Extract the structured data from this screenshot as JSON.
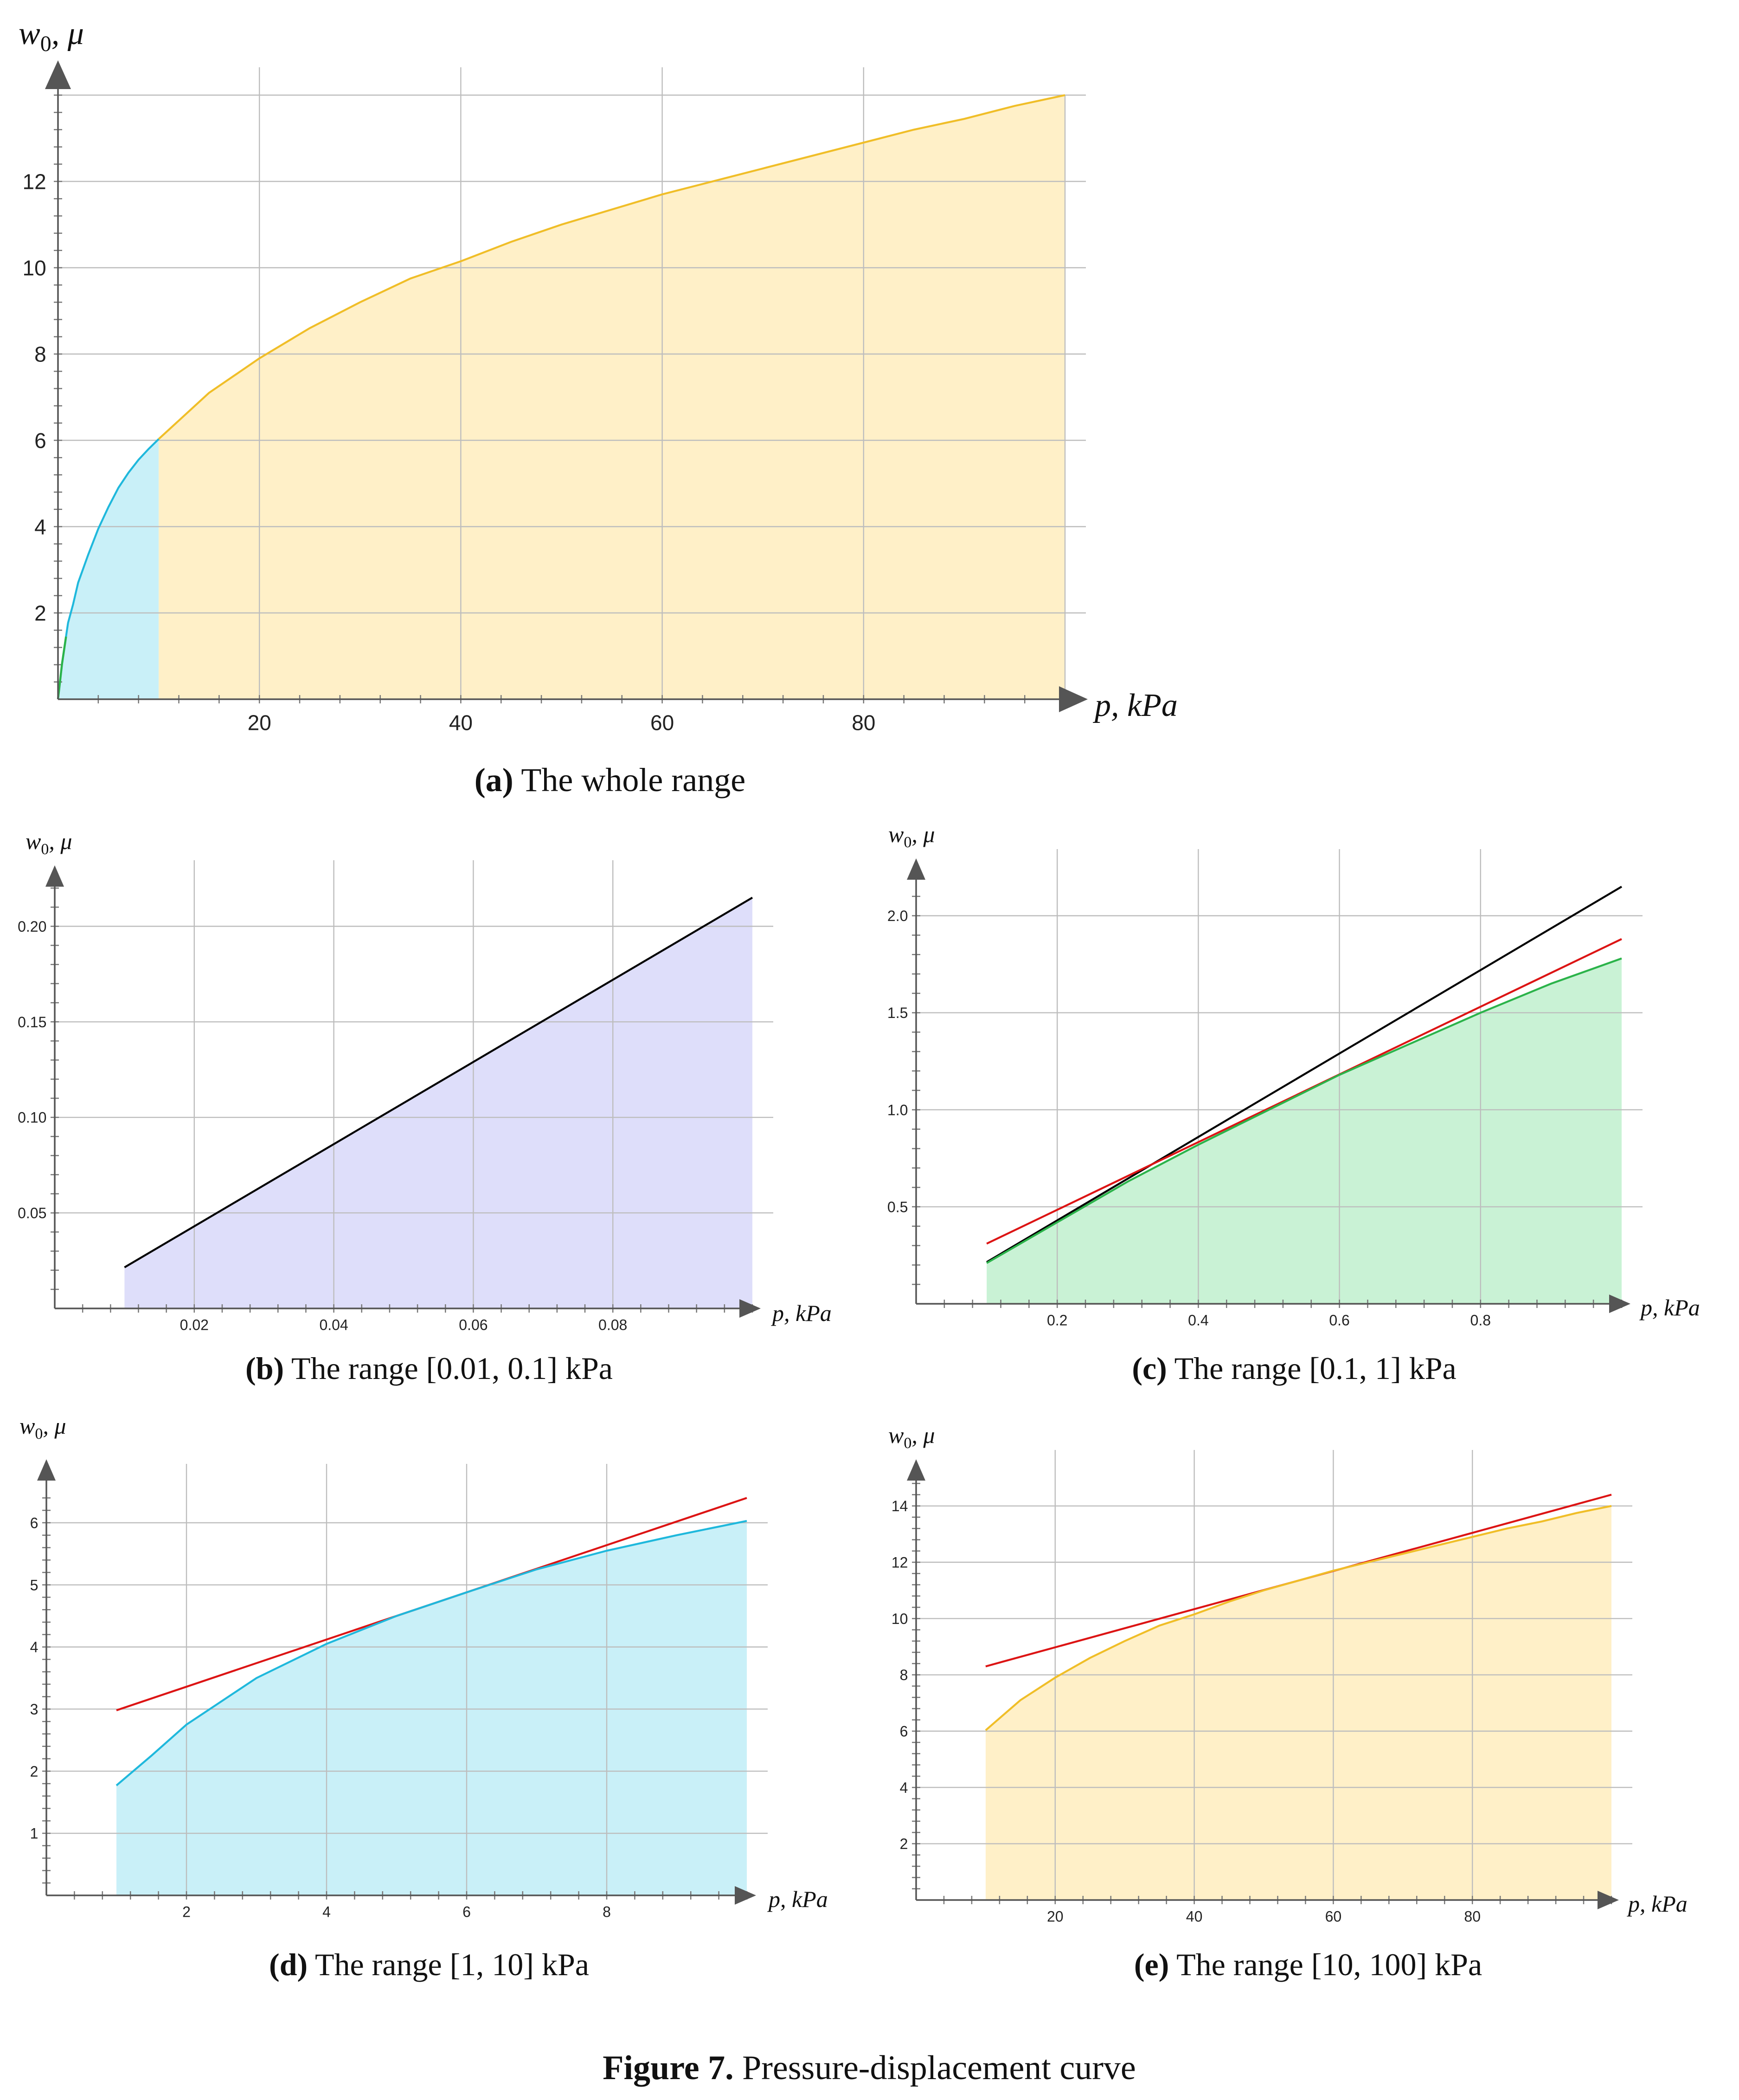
{
  "figure_caption": {
    "label": "Figure 7.",
    "text": "Pressure-displacement curve"
  },
  "captions": {
    "a": {
      "tag": "(a)",
      "text": "The whole range"
    },
    "b": {
      "tag": "(b)",
      "text": "The range [0.01, 0.1] kPa"
    },
    "c": {
      "tag": "(c)",
      "text": "The range [0.1, 1] kPa"
    },
    "d": {
      "tag": "(d)",
      "text": "The range [1, 10] kPa"
    },
    "e": {
      "tag": "(e)",
      "text": "The range [10, 100] kPa"
    }
  },
  "colors": {
    "lavender_fill": "#dedefa",
    "green_fill": "#c9f2d5",
    "green_line": "#2bb34a",
    "cyan_fill": "#c9f0f8",
    "cyan_line": "#1fb8dc",
    "yellow_fill": "#fff0c8",
    "yellow_line": "#f0be28",
    "red_line": "#dc1414",
    "black_line": "#000000",
    "axis": "#555555"
  },
  "chart_data": [
    {
      "id": "a",
      "type": "area",
      "xlabel": "p, kPa",
      "ylabel": "w0, μ",
      "xlim": [
        0,
        100
      ],
      "ylim": [
        0,
        14
      ],
      "xticks": [
        20,
        40,
        60,
        80
      ],
      "yticks": [
        2,
        4,
        6,
        8,
        10,
        12
      ],
      "series": [
        {
          "fill": "cyan_fill",
          "line": "cyan_line",
          "points": [
            [
              0,
              0
            ],
            [
              0.01,
              0.02
            ],
            [
              0.05,
              0.1
            ],
            [
              0.1,
              0.2
            ],
            [
              0.2,
              0.4
            ],
            [
              0.4,
              0.82
            ],
            [
              0.7,
              1.3
            ],
            [
              1,
              1.77
            ],
            [
              1.5,
              2.2
            ],
            [
              2,
              2.7
            ],
            [
              3,
              3.35
            ],
            [
              4,
              3.95
            ],
            [
              5,
              4.45
            ],
            [
              6,
              4.9
            ],
            [
              7,
              5.25
            ],
            [
              8,
              5.55
            ],
            [
              9,
              5.8
            ],
            [
              10,
              6.03
            ]
          ]
        },
        {
          "fill": "yellow_fill",
          "line": "yellow_line",
          "points": [
            [
              10,
              6.03
            ],
            [
              15,
              7.1
            ],
            [
              20,
              7.9
            ],
            [
              25,
              8.6
            ],
            [
              30,
              9.2
            ],
            [
              35,
              9.75
            ],
            [
              40,
              10.15
            ],
            [
              45,
              10.6
            ],
            [
              50,
              11.0
            ],
            [
              55,
              11.35
            ],
            [
              60,
              11.7
            ],
            [
              65,
              12.0
            ],
            [
              70,
              12.3
            ],
            [
              75,
              12.6
            ],
            [
              80,
              12.9
            ],
            [
              85,
              13.2
            ],
            [
              90,
              13.45
            ],
            [
              95,
              13.75
            ],
            [
              100,
              14.0
            ]
          ]
        }
      ]
    },
    {
      "id": "b",
      "type": "area",
      "xlabel": "p, kPa",
      "ylabel": "w0, μ",
      "xlim": [
        0,
        0.1
      ],
      "ylim": [
        0,
        0.22
      ],
      "xticks": [
        0.02,
        0.04,
        0.06,
        0.08
      ],
      "yticks": [
        0.05,
        0.1,
        0.15,
        0.2
      ],
      "xtick_labels": [
        "0.02",
        "0.04",
        "0.06",
        "0.08"
      ],
      "ytick_labels": [
        "0.05",
        "0.10",
        "0.15",
        "0.20"
      ],
      "series": [
        {
          "fill": "lavender_fill",
          "line": "black_line",
          "points": [
            [
              0.01,
              0.0215
            ],
            [
              0.1,
              0.215
            ]
          ]
        }
      ]
    },
    {
      "id": "c",
      "type": "area",
      "xlabel": "p, kPa",
      "ylabel": "w0, μ",
      "xlim": [
        0,
        1
      ],
      "ylim": [
        0,
        2.2
      ],
      "xticks": [
        0.2,
        0.4,
        0.6,
        0.8
      ],
      "yticks": [
        0.5,
        1.0,
        1.5,
        2.0
      ],
      "ytick_labels": [
        "0.5",
        "1.0",
        "1.5",
        "2.0"
      ],
      "series": [
        {
          "fill": "green_fill",
          "line": "green_line",
          "points": [
            [
              0.1,
              0.21
            ],
            [
              0.2,
              0.42
            ],
            [
              0.3,
              0.63
            ],
            [
              0.4,
              0.82
            ],
            [
              0.5,
              1.0
            ],
            [
              0.6,
              1.18
            ],
            [
              0.7,
              1.34
            ],
            [
              0.8,
              1.5
            ],
            [
              0.9,
              1.65
            ],
            [
              1.0,
              1.78
            ]
          ]
        }
      ],
      "lines": [
        {
          "color": "black_line",
          "points": [
            [
              0.1,
              0.215
            ],
            [
              1.0,
              2.15
            ]
          ]
        },
        {
          "color": "red_line",
          "points": [
            [
              0.1,
              0.31
            ],
            [
              1.0,
              1.88
            ]
          ]
        }
      ]
    },
    {
      "id": "d",
      "type": "area",
      "xlabel": "p, kPa",
      "ylabel": "w0, μ",
      "xlim": [
        0,
        10
      ],
      "ylim": [
        0,
        6.5
      ],
      "xticks": [
        2,
        4,
        6,
        8
      ],
      "yticks": [
        1,
        2,
        3,
        4,
        5,
        6
      ],
      "series": [
        {
          "fill": "cyan_fill",
          "line": "cyan_line",
          "points": [
            [
              1,
              1.77
            ],
            [
              1.5,
              2.25
            ],
            [
              2,
              2.75
            ],
            [
              3,
              3.5
            ],
            [
              4,
              4.05
            ],
            [
              5,
              4.5
            ],
            [
              6,
              4.88
            ],
            [
              7,
              5.25
            ],
            [
              8,
              5.55
            ],
            [
              9,
              5.8
            ],
            [
              10,
              6.03
            ]
          ]
        }
      ],
      "lines": [
        {
          "color": "red_line",
          "points": [
            [
              1,
              2.98
            ],
            [
              10,
              6.4
            ]
          ]
        }
      ]
    },
    {
      "id": "e",
      "type": "area",
      "xlabel": "p, kPa",
      "ylabel": "w0, μ",
      "xlim": [
        0,
        100
      ],
      "ylim": [
        0,
        15
      ],
      "xticks": [
        20,
        40,
        60,
        80
      ],
      "yticks": [
        2,
        4,
        6,
        8,
        10,
        12,
        14
      ],
      "series": [
        {
          "fill": "yellow_fill",
          "line": "yellow_line",
          "points": [
            [
              10,
              6.03
            ],
            [
              15,
              7.1
            ],
            [
              20,
              7.9
            ],
            [
              25,
              8.6
            ],
            [
              30,
              9.2
            ],
            [
              35,
              9.75
            ],
            [
              40,
              10.15
            ],
            [
              45,
              10.6
            ],
            [
              50,
              11.0
            ],
            [
              55,
              11.35
            ],
            [
              60,
              11.7
            ],
            [
              65,
              12.0
            ],
            [
              70,
              12.3
            ],
            [
              75,
              12.6
            ],
            [
              80,
              12.9
            ],
            [
              85,
              13.2
            ],
            [
              90,
              13.45
            ],
            [
              95,
              13.75
            ],
            [
              100,
              14.0
            ]
          ]
        }
      ],
      "lines": [
        {
          "color": "red_line",
          "points": [
            [
              10,
              8.3
            ],
            [
              100,
              14.4
            ]
          ]
        }
      ]
    }
  ]
}
